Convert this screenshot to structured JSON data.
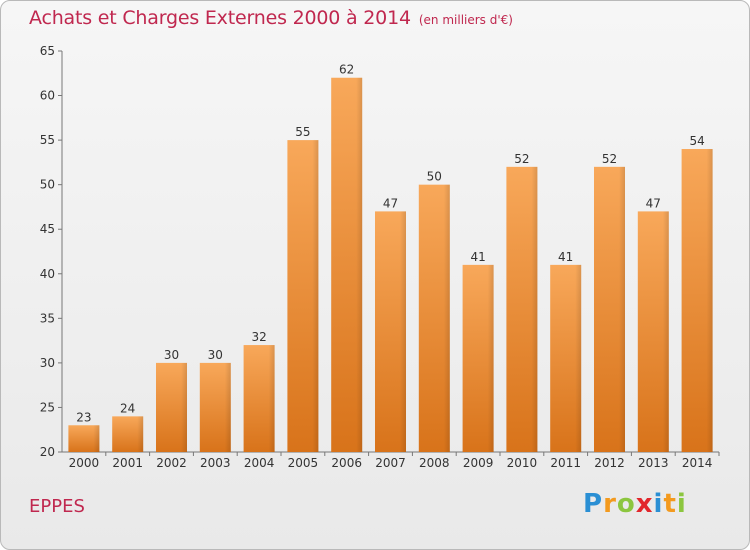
{
  "chart_data": {
    "type": "bar",
    "title": "Achats et Charges Externes 2000 à 2014",
    "subtitle": "(en milliers d'€)",
    "categories": [
      "2000",
      "2001",
      "2002",
      "2003",
      "2004",
      "2005",
      "2006",
      "2007",
      "2008",
      "2009",
      "2010",
      "2011",
      "2012",
      "2013",
      "2014"
    ],
    "values": [
      23,
      24,
      30,
      30,
      32,
      55,
      62,
      47,
      50,
      41,
      52,
      41,
      52,
      47,
      54
    ],
    "ylim": [
      20,
      65
    ],
    "yticks": [
      20,
      25,
      30,
      35,
      40,
      45,
      50,
      55,
      60,
      65
    ],
    "grid": false,
    "bar_color": "#f08a24",
    "data_labels": true
  },
  "footer": {
    "commune": "EPPES",
    "brand": "Proxiti",
    "brand_letters": [
      {
        "ch": "P",
        "color": "#2a8fd4"
      },
      {
        "ch": "r",
        "color": "#f39a1e"
      },
      {
        "ch": "o",
        "color": "#8cc63f"
      },
      {
        "ch": "x",
        "color": "#e2272c"
      },
      {
        "ch": "i",
        "color": "#2a8fd4"
      },
      {
        "ch": "t",
        "color": "#f39a1e"
      },
      {
        "ch": "i",
        "color": "#8cc63f"
      }
    ]
  }
}
